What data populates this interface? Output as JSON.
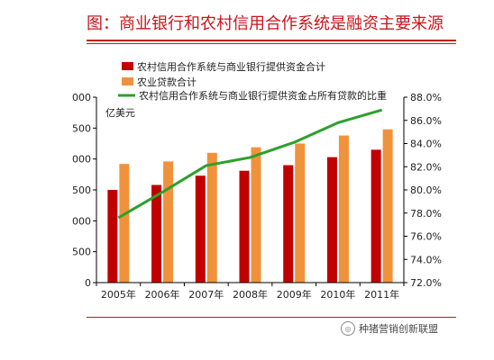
{
  "header": {
    "title": "图：商业银行和农村信用合作系统是融资主要来源"
  },
  "watermark": {
    "text": "种猪营销创新联盟"
  },
  "colors": {
    "title": "#c8151c",
    "bar_credit": "#c00000",
    "bar_agri": "#f0923c",
    "line_ratio": "#2ca02c"
  },
  "chart_data": {
    "type": "bar",
    "categories": [
      "2005年",
      "2006年",
      "2007年",
      "2008年",
      "2009年",
      "2010年",
      "2011年"
    ],
    "series": [
      {
        "name": "农村信用合作系统与商业银行提供资金合计",
        "axis": "left",
        "values": [
          1500,
          1580,
          1730,
          1810,
          1900,
          2030,
          2150
        ]
      },
      {
        "name": "农业贷款合计",
        "axis": "left",
        "values": [
          1920,
          1960,
          2100,
          2190,
          2250,
          2380,
          2480
        ]
      },
      {
        "name": "农村信用合作系统与商业银行提供资金占所有贷款的比重",
        "type": "line",
        "axis": "right",
        "values": [
          77.6,
          79.8,
          82.1,
          82.8,
          84.1,
          85.8,
          86.9
        ]
      }
    ],
    "ylabel": "亿美元",
    "y_ticks": [
      "0",
      "500",
      "1000",
      "1500",
      "2000",
      "2500",
      "3000"
    ],
    "y_ticks_visible": [
      "0",
      "500",
      "000",
      "500",
      "000",
      "500",
      "000"
    ],
    "y2_ticks": [
      "72.0%",
      "74.0%",
      "76.0%",
      "78.0%",
      "80.0%",
      "82.0%",
      "84.0%",
      "86.0%",
      "88.0%"
    ],
    "ylim": [
      0,
      3000
    ],
    "y2lim": [
      72,
      88
    ],
    "legend_position": "top"
  }
}
